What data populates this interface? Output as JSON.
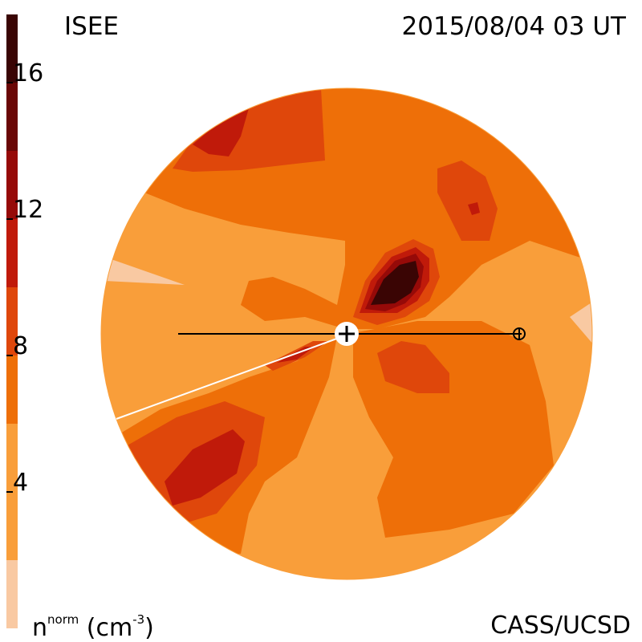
{
  "title": "ISEE",
  "datetime": "2015/08/04 03 UT",
  "credit": "CASS/UCSD",
  "units": {
    "base": "n",
    "sup": "norm",
    "unit_open": "(cm",
    "unit_sup": "-3",
    "unit_close": ")"
  },
  "colorbar": {
    "min": 0,
    "max": 18,
    "ticks": [
      {
        "label": "4",
        "value": 4
      },
      {
        "label": "8",
        "value": 8
      },
      {
        "label": "12",
        "value": 12
      },
      {
        "label": "16",
        "value": 16
      }
    ],
    "bands": [
      {
        "from": 0,
        "to": 2,
        "color": "#f9c9a2"
      },
      {
        "from": 2,
        "to": 6,
        "color": "#f99e3a"
      },
      {
        "from": 6,
        "to": 8,
        "color": "#ee6f08"
      },
      {
        "from": 8,
        "to": 10,
        "color": "#df470b"
      },
      {
        "from": 10,
        "to": 12,
        "color": "#c01a0a"
      },
      {
        "from": 12,
        "to": 14,
        "color": "#960a08"
      },
      {
        "from": 14,
        "to": 16,
        "color": "#6a0706"
      },
      {
        "from": 16,
        "to": 18,
        "color": "#3a0504"
      }
    ]
  }
}
